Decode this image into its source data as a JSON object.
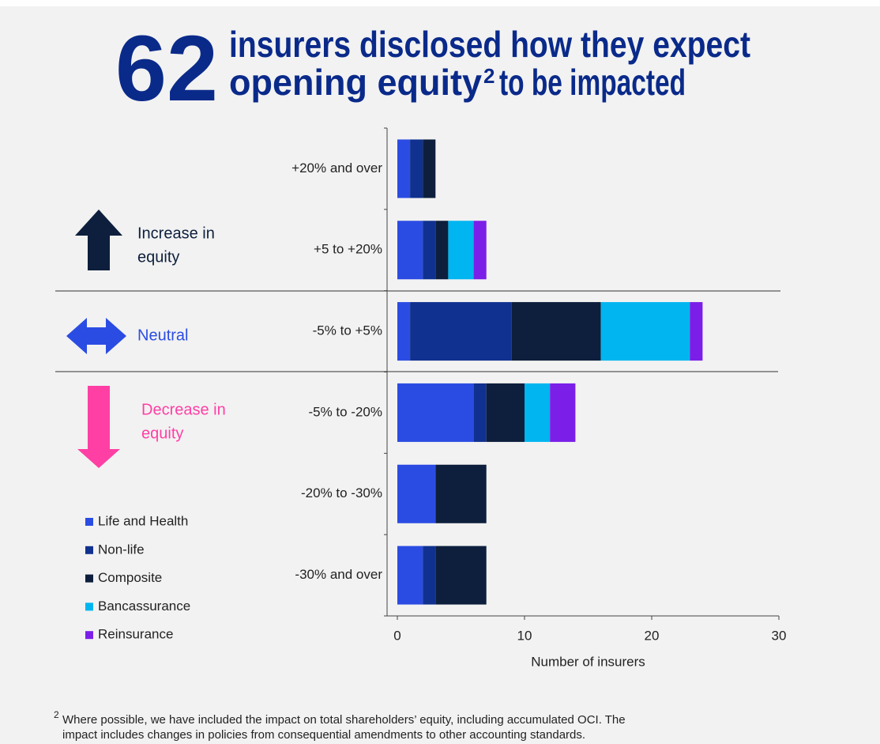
{
  "chart_data": {
    "type": "bar",
    "orientation": "horizontal",
    "stacked": true,
    "headline_number": "62",
    "title_line1": "insurers disclosed how they expect",
    "title_line2_start": "opening equity",
    "title_superscript": "2",
    "title_line2_end": "to be impacted",
    "categories": [
      "+20% and over",
      "+5 to +20%",
      "-5% to +5%",
      "-5% to -20%",
      "-20% to -30%",
      "-30% and over"
    ],
    "series": [
      {
        "name": "Life and Health",
        "color": "#2b4ce3",
        "values": [
          1,
          2,
          1,
          6,
          3,
          2
        ]
      },
      {
        "name": "Non-life",
        "color": "#10318f",
        "values": [
          1,
          1,
          8,
          1,
          0,
          1
        ]
      },
      {
        "name": "Composite",
        "color": "#0d1f3c",
        "values": [
          1,
          1,
          7,
          3,
          4,
          4
        ]
      },
      {
        "name": "Bancassurance",
        "color": "#00b5f0",
        "values": [
          0,
          2,
          7,
          2,
          0,
          0
        ]
      },
      {
        "name": "Reinsurance",
        "color": "#7b1fe8",
        "values": [
          0,
          1,
          1,
          2,
          0,
          0
        ]
      }
    ],
    "xlim": [
      0,
      30
    ],
    "xticks": [
      0,
      10,
      20,
      30
    ],
    "xlabel": "Number of insurers",
    "legend": "bottom-left",
    "annotations": [
      {
        "lines": [
          "Increase in",
          "equity"
        ],
        "color": "#0d1f3c"
      },
      {
        "lines": [
          "Neutral"
        ],
        "color": "#2b4ce3"
      },
      {
        "lines": [
          "Decrease in",
          "equity"
        ],
        "color": "#ff3fa4"
      }
    ]
  },
  "footnote": {
    "marker": "2",
    "lines": [
      "Where possible, we have included the impact on total shareholders’ equity, including accumulated OCI. The",
      "impact includes changes in policies from consequential amendments to other accounting standards."
    ]
  }
}
